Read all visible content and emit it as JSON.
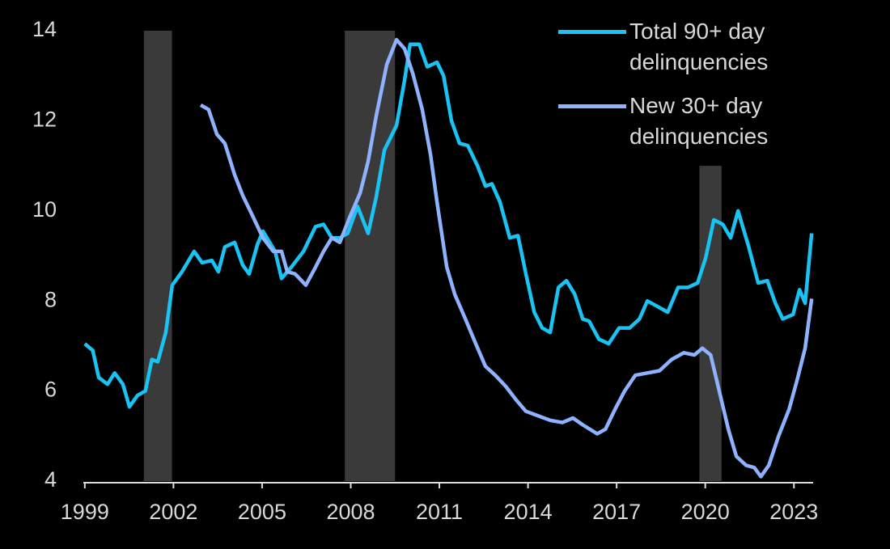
{
  "chart_data": {
    "type": "line",
    "legend": "upper right",
    "background": "#000000",
    "xlim": [
      1998.95,
      2023.65
    ],
    "xticks": [
      1999,
      2002,
      2005,
      2008,
      2011,
      2014,
      2017,
      2020,
      2023
    ],
    "ylim": [
      4,
      14
    ],
    "yticks": [
      4,
      6,
      8,
      10,
      12,
      14
    ],
    "grid": false,
    "shaded_periods": [
      {
        "start": 2001.0,
        "end": 2001.95,
        "top": 14
      },
      {
        "start": 2007.8,
        "end": 2009.5,
        "top": 14
      },
      {
        "start": 2019.8,
        "end": 2020.55,
        "top": 11
      }
    ],
    "shade_color": "#3a3a3a",
    "series": [
      {
        "name": "Total 90+ day delinquencies",
        "color": "#19c3f3",
        "x": [
          1999.0,
          1999.27,
          1999.47,
          1999.77,
          2000.01,
          2000.29,
          2000.51,
          2000.78,
          2001.05,
          2001.27,
          2001.47,
          2001.74,
          2001.96,
          2002.29,
          2002.7,
          2002.97,
          2003.3,
          2003.52,
          2003.74,
          2004.07,
          2004.34,
          2004.56,
          2004.84,
          2005.03,
          2005.44,
          2005.66,
          2005.99,
          2006.4,
          2006.81,
          2007.08,
          2007.36,
          2007.63,
          2007.9,
          2008.23,
          2008.59,
          2008.86,
          2009.14,
          2009.55,
          2009.82,
          2010.01,
          2010.32,
          2010.59,
          2010.92,
          2011.14,
          2011.41,
          2011.68,
          2011.96,
          2012.29,
          2012.56,
          2012.78,
          2013.05,
          2013.38,
          2013.66,
          2013.93,
          2014.21,
          2014.48,
          2014.75,
          2015.03,
          2015.3,
          2015.58,
          2015.85,
          2016.07,
          2016.4,
          2016.73,
          2017.08,
          2017.44,
          2017.77,
          2018.04,
          2018.32,
          2018.73,
          2019.08,
          2019.41,
          2019.74,
          2020.01,
          2020.29,
          2020.59,
          2020.86,
          2021.11,
          2021.47,
          2021.79,
          2022.1,
          2022.37,
          2022.62,
          2022.97,
          2023.19,
          2023.38,
          2023.6
        ],
        "values": [
          7.05,
          6.9,
          6.3,
          6.15,
          6.4,
          6.15,
          5.65,
          5.9,
          6.0,
          6.7,
          6.65,
          7.3,
          8.35,
          8.65,
          9.1,
          8.85,
          8.9,
          8.65,
          9.2,
          9.3,
          8.8,
          8.6,
          9.25,
          9.55,
          9.1,
          8.5,
          8.75,
          9.1,
          9.65,
          9.7,
          9.4,
          9.4,
          9.5,
          10.1,
          9.5,
          10.3,
          11.35,
          11.9,
          12.9,
          13.7,
          13.7,
          13.2,
          13.3,
          13.0,
          12.0,
          11.5,
          11.45,
          11.0,
          10.55,
          10.6,
          10.2,
          9.4,
          9.45,
          8.6,
          7.75,
          7.4,
          7.3,
          8.3,
          8.45,
          8.15,
          7.6,
          7.55,
          7.15,
          7.05,
          7.4,
          7.4,
          7.6,
          8.0,
          7.9,
          7.75,
          8.3,
          8.3,
          8.4,
          8.95,
          9.8,
          9.7,
          9.4,
          10.0,
          9.2,
          8.4,
          8.45,
          7.95,
          7.6,
          7.7,
          8.25,
          7.95,
          9.5
        ]
      },
      {
        "name": "New 30+ day delinquencies",
        "color": "#8fb2ff",
        "x": [
          2002.92,
          2003.19,
          2003.47,
          2003.74,
          2004.07,
          2004.34,
          2004.67,
          2005.03,
          2005.38,
          2005.66,
          2005.85,
          2006.12,
          2006.48,
          2006.81,
          2007.08,
          2007.36,
          2007.63,
          2007.96,
          2008.32,
          2008.59,
          2008.86,
          2009.22,
          2009.55,
          2009.82,
          2010.1,
          2010.42,
          2010.7,
          2010.92,
          2011.25,
          2011.52,
          2011.88,
          2012.23,
          2012.56,
          2012.89,
          2013.25,
          2013.6,
          2013.93,
          2014.34,
          2014.75,
          2015.16,
          2015.52,
          2015.85,
          2016.34,
          2016.62,
          2016.95,
          2017.27,
          2017.63,
          2018.04,
          2018.45,
          2018.86,
          2019.27,
          2019.63,
          2019.9,
          2020.18,
          2020.51,
          2020.78,
          2021.05,
          2021.38,
          2021.66,
          2021.88,
          2022.15,
          2022.48,
          2022.84,
          2023.11,
          2023.38,
          2023.6
        ],
        "values": [
          12.35,
          12.25,
          11.7,
          11.5,
          10.8,
          10.35,
          9.9,
          9.4,
          9.1,
          9.1,
          8.65,
          8.6,
          8.35,
          8.75,
          9.1,
          9.4,
          9.3,
          9.85,
          10.4,
          11.1,
          12.1,
          13.25,
          13.8,
          13.6,
          13.05,
          12.25,
          11.25,
          10.2,
          8.75,
          8.15,
          7.6,
          7.05,
          6.55,
          6.35,
          6.1,
          5.8,
          5.55,
          5.45,
          5.35,
          5.3,
          5.4,
          5.25,
          5.05,
          5.15,
          5.6,
          6.0,
          6.35,
          6.4,
          6.45,
          6.7,
          6.85,
          6.8,
          6.95,
          6.8,
          5.9,
          5.15,
          4.55,
          4.35,
          4.3,
          4.1,
          4.35,
          5.0,
          5.6,
          6.25,
          6.95,
          8.05
        ]
      }
    ]
  }
}
